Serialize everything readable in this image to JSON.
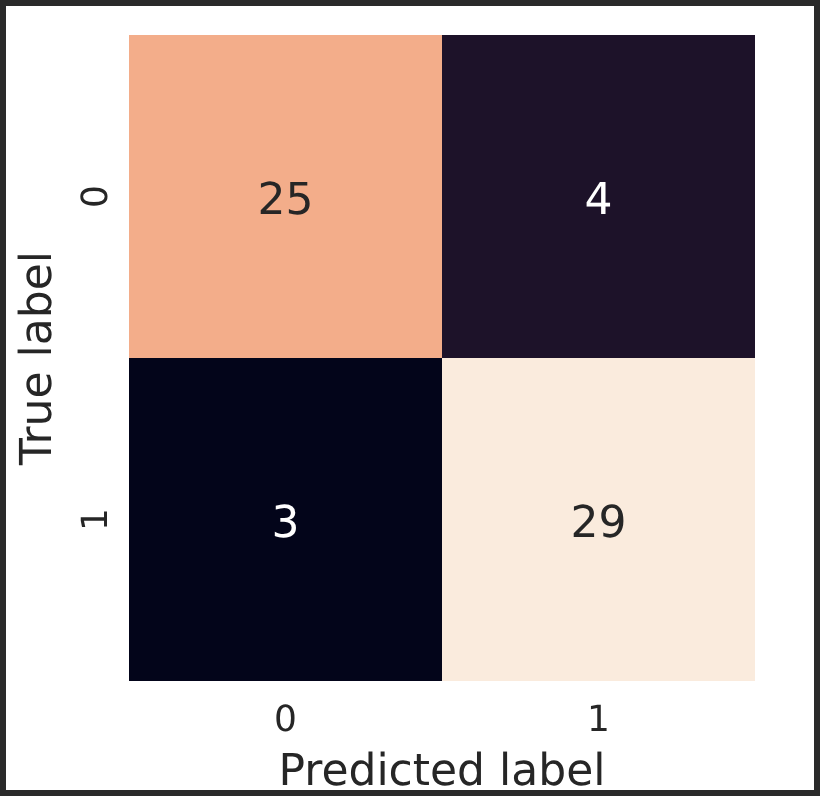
{
  "chart_data": {
    "type": "heatmap",
    "xlabel": "Predicted label",
    "ylabel": "True label",
    "categories": [
      "0",
      "1"
    ],
    "y_categories": [
      "0",
      "1"
    ],
    "cells": [
      [
        25,
        4
      ],
      [
        3,
        29
      ]
    ],
    "colors": [
      [
        "#f3ad8a",
        "#1d1229"
      ],
      [
        "#03051a",
        "#faebdd"
      ]
    ],
    "data_labels": true
  }
}
